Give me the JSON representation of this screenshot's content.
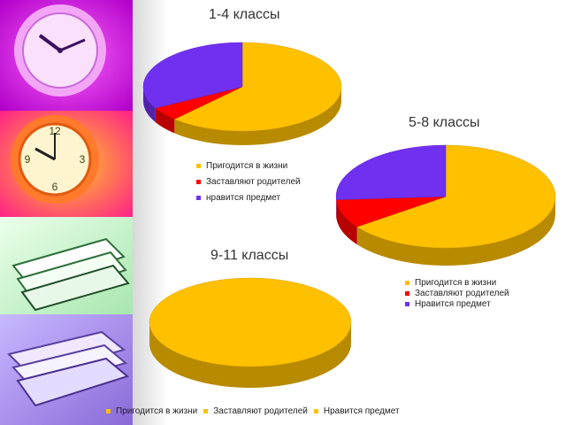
{
  "chart_data": [
    {
      "type": "pie",
      "title": "1-4 классы",
      "categories": [
        "Пригодится в жизни",
        "Заставляют родителей",
        "нравится предмет"
      ],
      "values": [
        62,
        5,
        33
      ],
      "colors": [
        "#FFC000",
        "#FF0000",
        "#7030F0"
      ],
      "legend_position": "bottom"
    },
    {
      "type": "pie",
      "title": "5-8 классы",
      "categories": [
        "Пригодится в жизни",
        "Заставляют родителей",
        "Нравится предмет"
      ],
      "values": [
        65,
        9,
        26
      ],
      "colors": [
        "#FFC000",
        "#FF0000",
        "#7030F0"
      ],
      "legend_position": "bottom"
    },
    {
      "type": "pie",
      "title": "9-11 классы",
      "categories": [
        "Пригодится в жизни",
        "Заставляют родителей",
        "Нравится предмет"
      ],
      "values": [
        100,
        0,
        0
      ],
      "colors": [
        "#FFC000",
        "#FFC000",
        "#FFC000"
      ],
      "legend_position": "bottom"
    }
  ],
  "decorative_images": [
    "clock-photo-purple",
    "clock-photo-orange",
    "books-photo-green",
    "books-photo-lavender"
  ]
}
